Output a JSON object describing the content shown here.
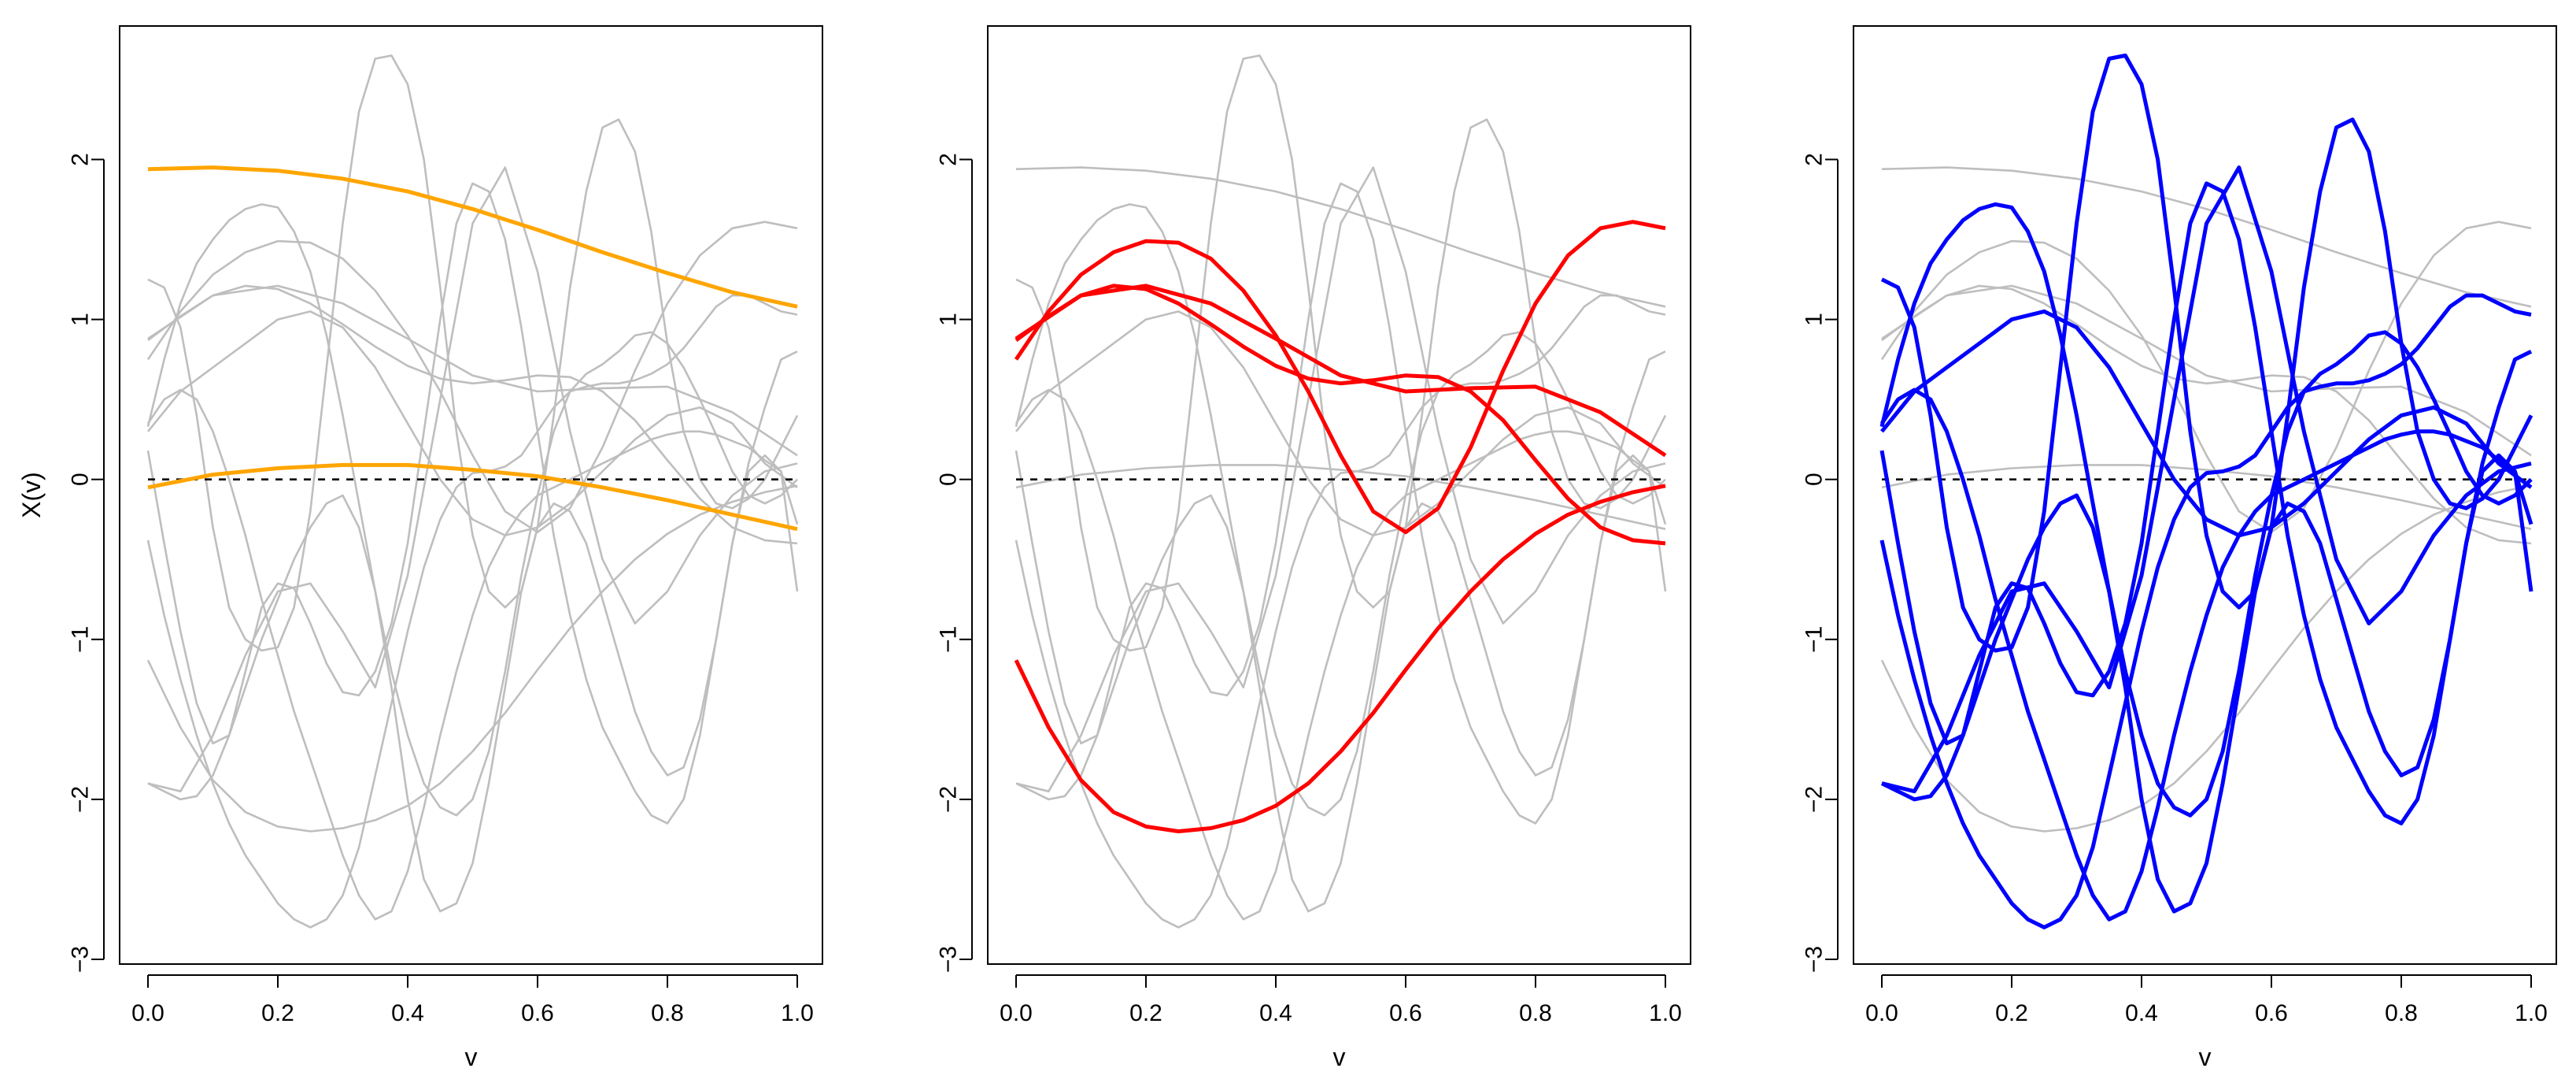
{
  "colors": {
    "background": "#ffffff",
    "axis": "#000000",
    "gray_curve": "#bebebe",
    "zero_line": "#000000",
    "panel1_highlight": "#ffa500",
    "panel2_highlight": "#ff0000",
    "panel3_highlight": "#0000ff"
  },
  "chart_data": [
    {
      "type": "line",
      "title": "",
      "xlabel": "v",
      "ylabel": "X(v)",
      "xlim": [
        0,
        1
      ],
      "ylim": [
        -3,
        2.8
      ],
      "xticks": [
        "0.0",
        "0.2",
        "0.4",
        "0.6",
        "0.8",
        "1.0"
      ],
      "yticks": [
        "−3",
        "−2",
        "−1",
        "0",
        "1",
        "2"
      ],
      "reference_line": {
        "y": 0,
        "style": "dashed"
      },
      "highlight": [
        "c1",
        "c2"
      ],
      "highlight_color": "#ffa500"
    },
    {
      "type": "line",
      "title": "",
      "xlabel": "v",
      "ylabel": "",
      "xlim": [
        0,
        1
      ],
      "ylim": [
        -3,
        2.8
      ],
      "xticks": [
        "0.0",
        "0.2",
        "0.4",
        "0.6",
        "0.8",
        "1.0"
      ],
      "yticks": [
        "−3",
        "−2",
        "−1",
        "0",
        "1",
        "2"
      ],
      "reference_line": {
        "y": 0,
        "style": "dashed"
      },
      "highlight": [
        "c3",
        "c4",
        "c5",
        "c6"
      ],
      "highlight_color": "#ff0000"
    },
    {
      "type": "line",
      "title": "",
      "xlabel": "v",
      "ylabel": "",
      "xlim": [
        0,
        1
      ],
      "ylim": [
        -3,
        2.8
      ],
      "xticks": [
        "0.0",
        "0.2",
        "0.4",
        "0.6",
        "0.8",
        "1.0"
      ],
      "yticks": [
        "−3",
        "−2",
        "−1",
        "0",
        "1",
        "2"
      ],
      "reference_line": {
        "y": 0,
        "style": "dashed"
      },
      "highlight": [
        "c7",
        "c8",
        "c9",
        "c10",
        "c11",
        "c12",
        "c13",
        "c14"
      ],
      "highlight_color": "#0000ff"
    }
  ],
  "curves": [
    {
      "id": "c1",
      "x": [
        0,
        0.1,
        0.2,
        0.3,
        0.4,
        0.5,
        0.6,
        0.7,
        0.8,
        0.9,
        1.0
      ],
      "y": [
        1.94,
        1.95,
        1.93,
        1.88,
        1.8,
        1.69,
        1.56,
        1.42,
        1.29,
        1.17,
        1.08
      ]
    },
    {
      "id": "c2",
      "x": [
        0,
        0.1,
        0.2,
        0.3,
        0.4,
        0.5,
        0.6,
        0.7,
        0.8,
        0.9,
        1.0
      ],
      "y": [
        -0.05,
        0.03,
        0.07,
        0.09,
        0.09,
        0.06,
        0.02,
        -0.05,
        -0.13,
        -0.22,
        -0.31
      ]
    },
    {
      "id": "c3",
      "x": [
        0,
        0.05,
        0.1,
        0.15,
        0.2,
        0.25,
        0.3,
        0.35,
        0.4,
        0.45,
        0.5,
        0.55,
        0.6,
        0.65,
        0.7,
        0.75,
        0.8,
        0.85,
        0.9,
        0.95,
        1.0
      ],
      "y": [
        0.75,
        1.05,
        1.28,
        1.42,
        1.49,
        1.48,
        1.38,
        1.18,
        0.9,
        0.55,
        0.15,
        -0.2,
        -0.33,
        -0.18,
        0.2,
        0.68,
        1.1,
        1.4,
        1.57,
        1.61,
        1.57
      ]
    },
    {
      "id": "c4",
      "x": [
        0,
        0.05,
        0.1,
        0.15,
        0.2,
        0.25,
        0.3,
        0.35,
        0.4,
        0.45,
        0.5,
        0.55,
        0.6,
        0.65,
        0.7,
        0.75,
        0.8,
        0.85,
        0.9,
        0.95,
        1.0
      ],
      "y": [
        0.87,
        1.02,
        1.15,
        1.21,
        1.19,
        1.1,
        0.97,
        0.83,
        0.71,
        0.63,
        0.6,
        0.62,
        0.65,
        0.64,
        0.55,
        0.37,
        0.12,
        -0.12,
        -0.3,
        -0.38,
        -0.4
      ]
    },
    {
      "id": "c5",
      "x": [
        0,
        0.05,
        0.1,
        0.15,
        0.2,
        0.25,
        0.3,
        0.35,
        0.4,
        0.45,
        0.5,
        0.55,
        0.6,
        0.65,
        0.7,
        0.75,
        0.8,
        0.85,
        0.9,
        0.95,
        1.0
      ],
      "y": [
        -1.13,
        -1.55,
        -1.88,
        -2.08,
        -2.17,
        -2.2,
        -2.18,
        -2.13,
        -2.04,
        -1.9,
        -1.7,
        -1.46,
        -1.19,
        -0.93,
        -0.7,
        -0.5,
        -0.34,
        -0.22,
        -0.14,
        -0.08,
        -0.04
      ]
    },
    {
      "id": "c6",
      "x": [
        0,
        0.1,
        0.2,
        0.3,
        0.4,
        0.5,
        0.6,
        0.7,
        0.8,
        0.9,
        1.0
      ],
      "y": [
        0.88,
        1.15,
        1.21,
        1.1,
        0.88,
        0.65,
        0.55,
        0.57,
        0.58,
        0.42,
        0.15
      ]
    },
    {
      "id": "c7",
      "x": [
        0,
        0.025,
        0.05,
        0.075,
        0.1,
        0.125,
        0.15,
        0.175,
        0.2,
        0.225,
        0.25,
        0.275,
        0.3,
        0.325,
        0.35,
        0.375,
        0.4,
        0.425,
        0.45,
        0.475,
        0.5,
        0.525,
        0.55,
        0.575,
        0.6,
        0.625,
        0.65,
        0.675,
        0.7,
        0.725,
        0.75,
        0.775,
        0.8,
        0.825,
        0.85,
        0.875,
        0.9,
        0.925,
        0.95,
        0.975,
        1.0
      ],
      "y": [
        1.25,
        1.2,
        0.95,
        0.4,
        -0.3,
        -0.8,
        -1.0,
        -1.07,
        -1.05,
        -0.8,
        -0.2,
        0.7,
        1.6,
        2.3,
        2.63,
        2.65,
        2.47,
        2.0,
        1.2,
        0.3,
        -0.35,
        -0.7,
        -0.8,
        -0.7,
        -0.3,
        0.4,
        1.2,
        1.8,
        2.2,
        2.25,
        2.05,
        1.55,
        0.85,
        0.3,
        0.0,
        -0.15,
        -0.18,
        -0.12,
        0.0,
        0.2,
        0.4
      ]
    },
    {
      "id": "c8",
      "x": [
        0,
        0.025,
        0.05,
        0.075,
        0.1,
        0.125,
        0.15,
        0.175,
        0.2,
        0.225,
        0.25,
        0.275,
        0.3,
        0.325,
        0.35,
        0.375,
        0.4,
        0.425,
        0.45,
        0.475,
        0.5,
        0.525,
        0.55,
        0.575,
        0.6,
        0.625,
        0.65,
        0.675,
        0.7,
        0.725,
        0.75,
        0.775,
        0.8,
        0.825,
        0.85,
        0.875,
        0.9,
        0.925,
        0.95,
        0.975,
        1.0
      ],
      "y": [
        0.18,
        -0.4,
        -0.95,
        -1.4,
        -1.65,
        -1.6,
        -1.2,
        -0.8,
        -0.65,
        -0.68,
        -0.9,
        -1.15,
        -1.33,
        -1.35,
        -1.2,
        -0.9,
        -0.4,
        0.3,
        1.0,
        1.6,
        1.85,
        1.8,
        1.5,
        0.95,
        0.3,
        -0.35,
        -0.85,
        -1.25,
        -1.55,
        -1.75,
        -1.95,
        -2.1,
        -2.15,
        -2.0,
        -1.6,
        -1.0,
        -0.4,
        0.05,
        0.15,
        0.05,
        -0.7
      ]
    },
    {
      "id": "c9",
      "x": [
        0,
        0.025,
        0.05,
        0.075,
        0.1,
        0.125,
        0.15,
        0.175,
        0.2,
        0.225,
        0.25,
        0.275,
        0.3,
        0.325,
        0.35,
        0.375,
        0.4,
        0.425,
        0.45,
        0.475,
        0.5,
        0.525,
        0.55,
        0.575,
        0.6,
        0.625,
        0.65,
        0.675,
        0.7,
        0.725,
        0.75,
        0.775,
        0.8,
        0.825,
        0.85,
        0.875,
        0.9,
        0.925,
        0.95,
        0.975,
        1.0
      ],
      "y": [
        0.33,
        0.75,
        1.1,
        1.35,
        1.5,
        1.62,
        1.69,
        1.72,
        1.7,
        1.55,
        1.3,
        0.9,
        0.4,
        -0.15,
        -0.7,
        -1.2,
        -1.6,
        -1.9,
        -2.05,
        -2.1,
        -2.0,
        -1.7,
        -1.2,
        -0.6,
        -0.1,
        0.3,
        0.55,
        0.66,
        0.72,
        0.8,
        0.9,
        0.92,
        0.85,
        0.7,
        0.5,
        0.28,
        0.05,
        -0.1,
        -0.15,
        -0.1,
        0.0
      ]
    },
    {
      "id": "c10",
      "x": [
        0,
        0.025,
        0.05,
        0.075,
        0.1,
        0.125,
        0.15,
        0.175,
        0.2,
        0.225,
        0.25,
        0.275,
        0.3,
        0.325,
        0.35,
        0.375,
        0.4,
        0.425,
        0.45,
        0.475,
        0.5,
        0.525,
        0.55,
        0.575,
        0.6,
        0.625,
        0.65,
        0.675,
        0.7,
        0.725,
        0.75,
        0.775,
        0.8,
        0.825,
        0.85,
        0.875,
        0.9,
        0.925,
        0.95,
        0.975,
        1.0
      ],
      "y": [
        -0.38,
        -0.85,
        -1.25,
        -1.6,
        -1.9,
        -2.15,
        -2.35,
        -2.5,
        -2.65,
        -2.75,
        -2.8,
        -2.75,
        -2.6,
        -2.3,
        -1.85,
        -1.4,
        -0.95,
        -0.55,
        -0.25,
        -0.05,
        0.04,
        0.05,
        0.08,
        0.15,
        0.3,
        0.45,
        0.55,
        0.58,
        0.6,
        0.6,
        0.62,
        0.66,
        0.72,
        0.82,
        0.95,
        1.08,
        1.15,
        1.15,
        1.1,
        1.05,
        1.03
      ]
    },
    {
      "id": "c11",
      "x": [
        0,
        0.025,
        0.05,
        0.075,
        0.1,
        0.125,
        0.15,
        0.175,
        0.2,
        0.225,
        0.25,
        0.275,
        0.3,
        0.325,
        0.35,
        0.375,
        0.4,
        0.425,
        0.45,
        0.475,
        0.5,
        0.525,
        0.55,
        0.575,
        0.6,
        0.625,
        0.65,
        0.675,
        0.7,
        0.725,
        0.75,
        0.775,
        0.8,
        0.825,
        0.85,
        0.875,
        0.9,
        0.925,
        0.95,
        0.975,
        1.0
      ],
      "y": [
        -1.9,
        -1.95,
        -2.0,
        -1.98,
        -1.85,
        -1.6,
        -1.3,
        -1.0,
        -0.75,
        -0.5,
        -0.3,
        -0.15,
        -0.1,
        -0.3,
        -0.7,
        -1.3,
        -2.0,
        -2.5,
        -2.7,
        -2.65,
        -2.4,
        -1.9,
        -1.3,
        -0.7,
        -0.3,
        -0.15,
        -0.2,
        -0.4,
        -0.75,
        -1.1,
        -1.45,
        -1.7,
        -1.85,
        -1.8,
        -1.5,
        -1.0,
        -0.4,
        0.1,
        0.45,
        0.75,
        0.8
      ]
    },
    {
      "id": "c12",
      "x": [
        0,
        0.025,
        0.05,
        0.075,
        0.1,
        0.125,
        0.15,
        0.175,
        0.2,
        0.225,
        0.25,
        0.275,
        0.3,
        0.325,
        0.35,
        0.375,
        0.4,
        0.425,
        0.45,
        0.475,
        0.5,
        0.525,
        0.55,
        0.575,
        0.6,
        0.625,
        0.65,
        0.675,
        0.7,
        0.725,
        0.75,
        0.775,
        0.8,
        0.825,
        0.85,
        0.875,
        0.9,
        0.925,
        0.95,
        0.975,
        1.0
      ],
      "y": [
        0.35,
        0.5,
        0.56,
        0.5,
        0.3,
        0.0,
        -0.35,
        -0.75,
        -1.1,
        -1.45,
        -1.75,
        -2.05,
        -2.35,
        -2.6,
        -2.75,
        -2.7,
        -2.45,
        -2.05,
        -1.6,
        -1.2,
        -0.85,
        -0.55,
        -0.35,
        -0.2,
        -0.1,
        -0.05,
        0.0,
        0.05,
        0.1,
        0.15,
        0.2,
        0.25,
        0.28,
        0.3,
        0.3,
        0.28,
        0.24,
        0.2,
        0.12,
        0.05,
        -0.28
      ]
    },
    {
      "id": "c13",
      "x": [
        0,
        0.05,
        0.1,
        0.15,
        0.2,
        0.25,
        0.3,
        0.35,
        0.4,
        0.45,
        0.5,
        0.55,
        0.6,
        0.65,
        0.7,
        0.75,
        0.8,
        0.85,
        0.9,
        0.95,
        1.0
      ],
      "y": [
        -1.9,
        -1.95,
        -1.6,
        -1.1,
        -0.7,
        -0.65,
        -0.95,
        -1.3,
        -0.6,
        0.5,
        1.6,
        1.95,
        1.3,
        0.3,
        -0.5,
        -0.9,
        -0.7,
        -0.35,
        -0.1,
        0.05,
        0.1
      ]
    },
    {
      "id": "c14",
      "x": [
        0,
        0.05,
        0.1,
        0.15,
        0.2,
        0.25,
        0.3,
        0.35,
        0.4,
        0.45,
        0.5,
        0.55,
        0.6,
        0.65,
        0.7,
        0.75,
        0.8,
        0.85,
        0.9,
        0.95,
        1.0
      ],
      "y": [
        0.3,
        0.55,
        0.7,
        0.85,
        1.0,
        1.05,
        0.95,
        0.7,
        0.35,
        0.0,
        -0.25,
        -0.35,
        -0.3,
        -0.15,
        0.05,
        0.25,
        0.4,
        0.45,
        0.35,
        0.1,
        -0.05
      ]
    }
  ]
}
